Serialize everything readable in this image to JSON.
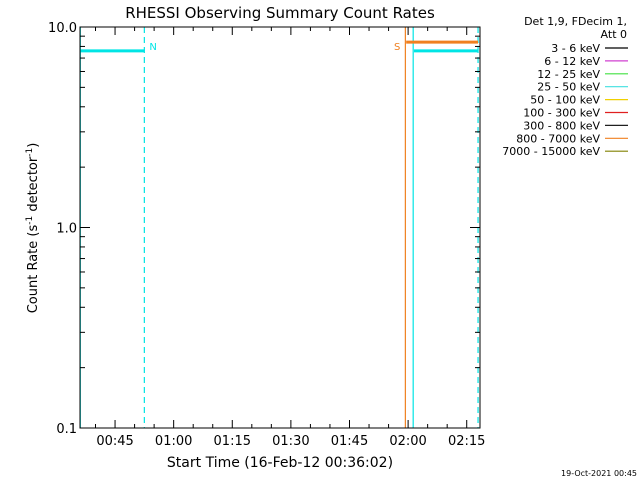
{
  "chart_data": {
    "type": "line",
    "title": "RHESSI Observing Summary Count Rates",
    "xlabel": "Start Time (16-Feb-12 00:36:02)",
    "ylabel_main": "Count Rate (s",
    "ylabel_sup1": "-1",
    "ylabel_mid": " detector",
    "ylabel_sup2": "-1",
    "ylabel_end": ")",
    "yscale": "log",
    "ylim": [
      0.1,
      10.0
    ],
    "xlim_minutes": [
      36.03,
      138.4
    ],
    "xticks": [
      {
        "label": "00:45",
        "minutes": 45
      },
      {
        "label": "01:00",
        "minutes": 60
      },
      {
        "label": "01:15",
        "minutes": 75
      },
      {
        "label": "01:30",
        "minutes": 90
      },
      {
        "label": "01:45",
        "minutes": 105
      },
      {
        "label": "02:00",
        "minutes": 120
      },
      {
        "label": "02:15",
        "minutes": 135
      }
    ],
    "yticks": [
      {
        "label": "10.0",
        "value": 10.0
      },
      {
        "label": "1.0",
        "value": 1.0
      },
      {
        "label": "0.1",
        "value": 0.1
      }
    ],
    "series": [
      {
        "name": "25 - 50 keV",
        "color": "#00e5e5",
        "segments": [
          {
            "x": [
              36.03,
              52.5
            ],
            "y": [
              7.6,
              7.6
            ]
          },
          {
            "x": [
              121.5,
              137.9
            ],
            "y": [
              7.6,
              7.6
            ]
          }
        ]
      },
      {
        "name": "800 - 7000 keV",
        "color": "#f08020",
        "segments": [
          {
            "x": [
              119.5,
              137.9
            ],
            "y": [
              8.4,
              8.4
            ]
          }
        ]
      }
    ],
    "markers": [
      {
        "label": "N",
        "minutes": 52.5,
        "color": "#00e5e5",
        "style": "dashed"
      },
      {
        "label": "S",
        "minutes": 119.3,
        "color": "#f08020",
        "style": "solid"
      },
      {
        "label": "",
        "minutes": 121.3,
        "color": "#00e5e5",
        "style": "solid"
      },
      {
        "label": "",
        "minutes": 137.9,
        "color": "#00e5e5",
        "style": "dashed"
      },
      {
        "label": "",
        "minutes": 36.1,
        "color": "#00e5e5",
        "style": "solid"
      }
    ],
    "legend": {
      "header1": "Det 1,9, FDecim 1,",
      "header2": "Att 0",
      "placement": "right",
      "entries": [
        {
          "label": "3 - 6 keV",
          "color": "#000000"
        },
        {
          "label": "6 - 12 keV",
          "color": "#d040d0"
        },
        {
          "label": "12 - 25 keV",
          "color": "#40e040"
        },
        {
          "label": "25 - 50 keV",
          "color": "#40e0e0"
        },
        {
          "label": "50 - 100 keV",
          "color": "#f0d000"
        },
        {
          "label": "100 - 300 keV",
          "color": "#e02020"
        },
        {
          "label": "300 - 800 keV",
          "color": "#202020"
        },
        {
          "label": "800 - 7000 keV",
          "color": "#f08020"
        },
        {
          "label": "7000 - 15000 keV",
          "color": "#808000"
        }
      ]
    },
    "footer": "19-Oct-2021 00:45"
  }
}
